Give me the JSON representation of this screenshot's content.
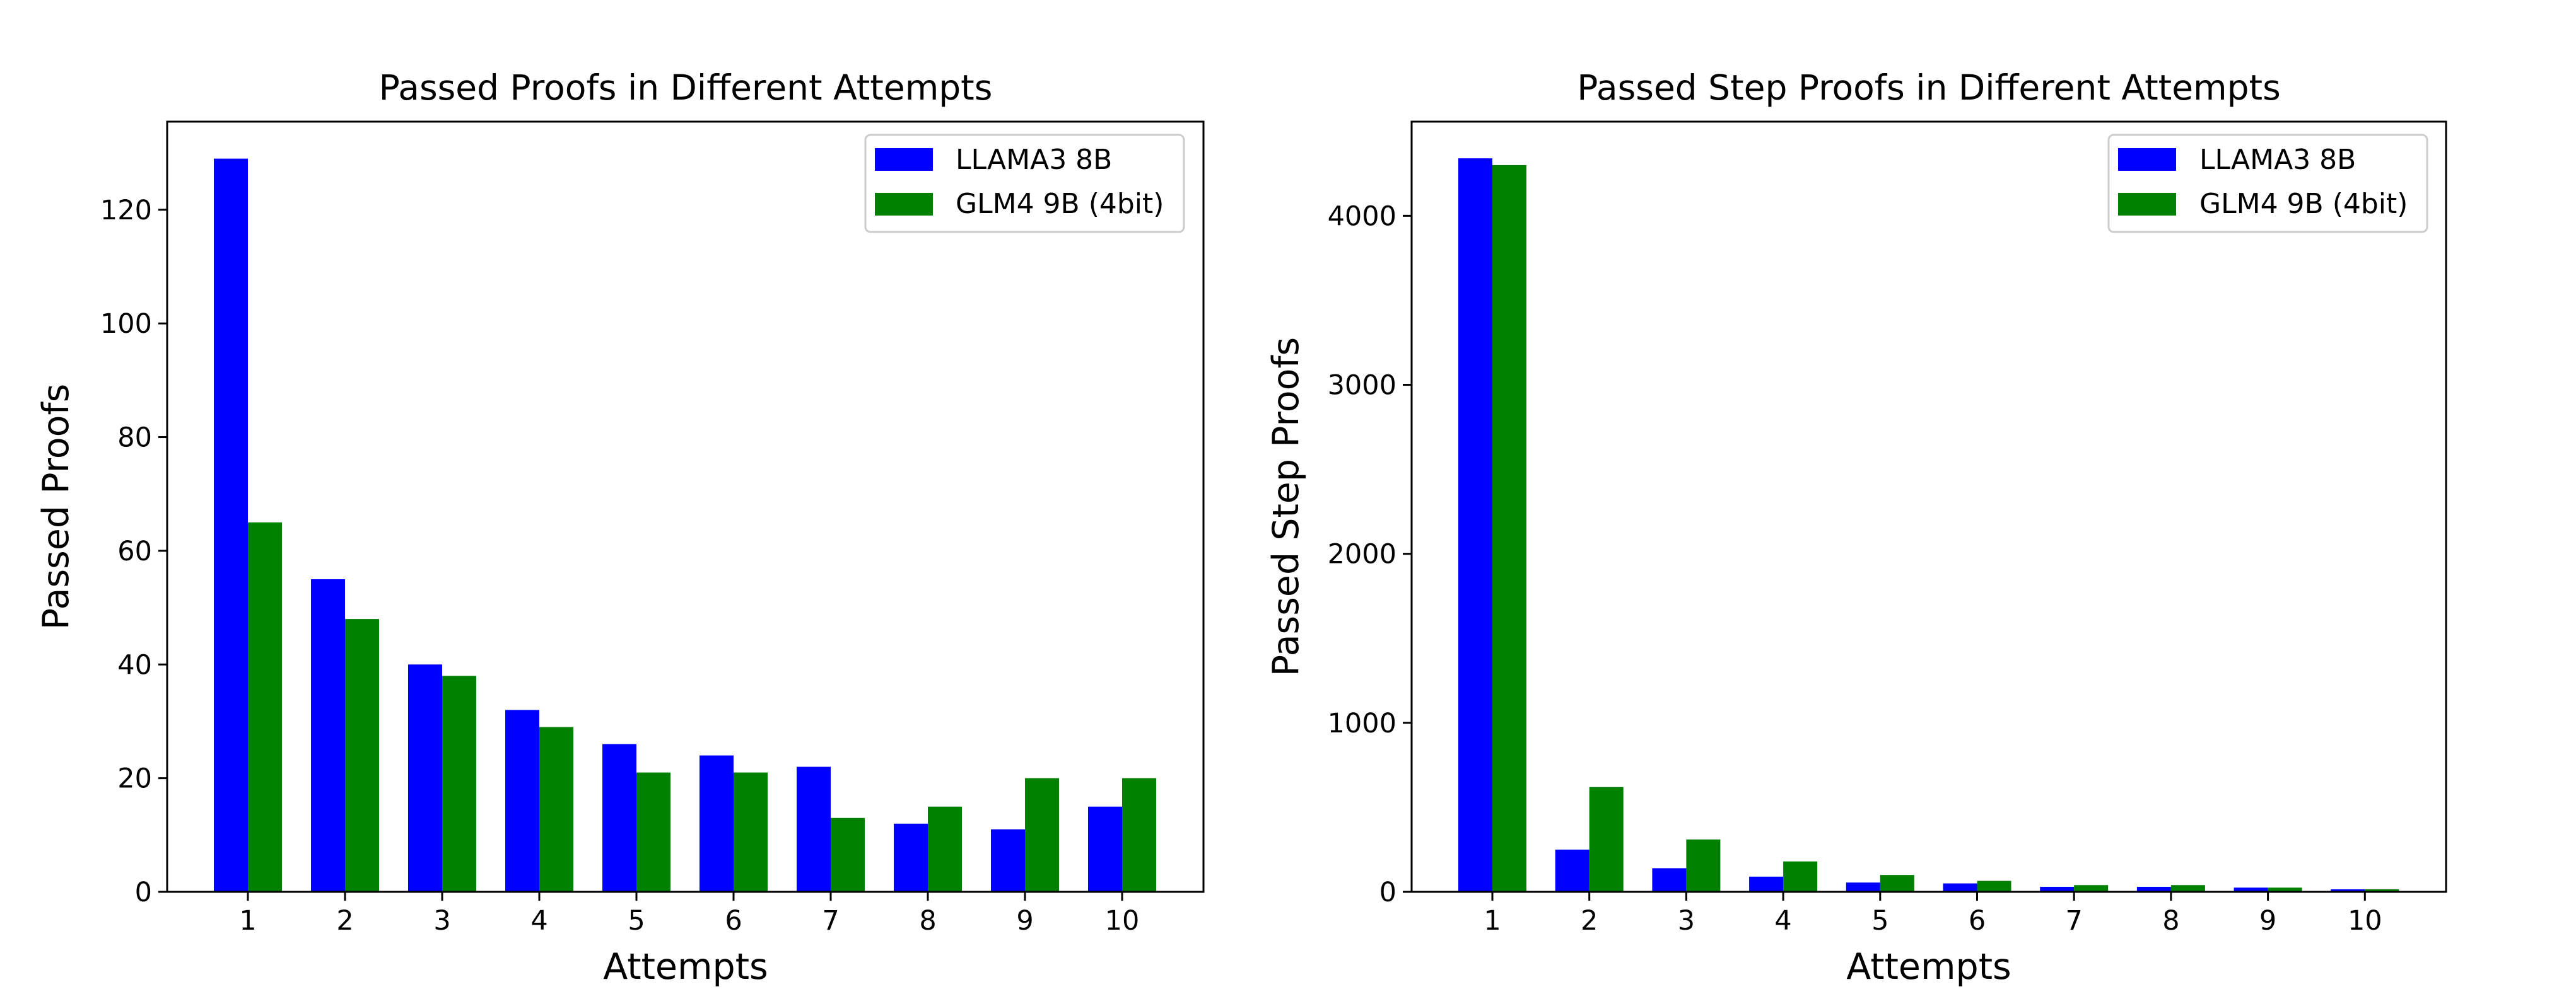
{
  "chart_data": [
    {
      "type": "bar",
      "title": "Passed Proofs in Different Attempts",
      "xlabel": "Attempts",
      "ylabel": "Passed Proofs",
      "categories": [
        "1",
        "2",
        "3",
        "4",
        "5",
        "6",
        "7",
        "8",
        "9",
        "10"
      ],
      "series": [
        {
          "name": "LLAMA3 8B",
          "color": "#0000ff",
          "values": [
            129,
            55,
            40,
            32,
            26,
            24,
            22,
            12,
            11,
            15
          ]
        },
        {
          "name": "GLM4 9B (4bit)",
          "color": "#008000",
          "values": [
            65,
            48,
            38,
            29,
            21,
            21,
            13,
            15,
            20,
            20
          ]
        }
      ],
      "ylim": [
        0,
        135.5
      ],
      "yticks": [
        0,
        20,
        40,
        60,
        80,
        100,
        120
      ],
      "legend": "top-right",
      "grid": false
    },
    {
      "type": "bar",
      "title": "Passed Step Proofs in Different Attempts",
      "xlabel": "Attempts",
      "ylabel": "Passed Step Proofs",
      "categories": [
        "1",
        "2",
        "3",
        "4",
        "5",
        "6",
        "7",
        "8",
        "9",
        "10"
      ],
      "series": [
        {
          "name": "LLAMA3 8B",
          "color": "#0000ff",
          "values": [
            4340,
            250,
            140,
            90,
            55,
            50,
            30,
            30,
            25,
            15
          ]
        },
        {
          "name": "GLM4 9B (4bit)",
          "color": "#008000",
          "values": [
            4300,
            620,
            310,
            180,
            100,
            65,
            40,
            40,
            25,
            15
          ]
        }
      ],
      "ylim": [
        0,
        4557
      ],
      "yticks": [
        0,
        1000,
        2000,
        3000,
        4000
      ],
      "legend": "top-right",
      "grid": false
    }
  ]
}
